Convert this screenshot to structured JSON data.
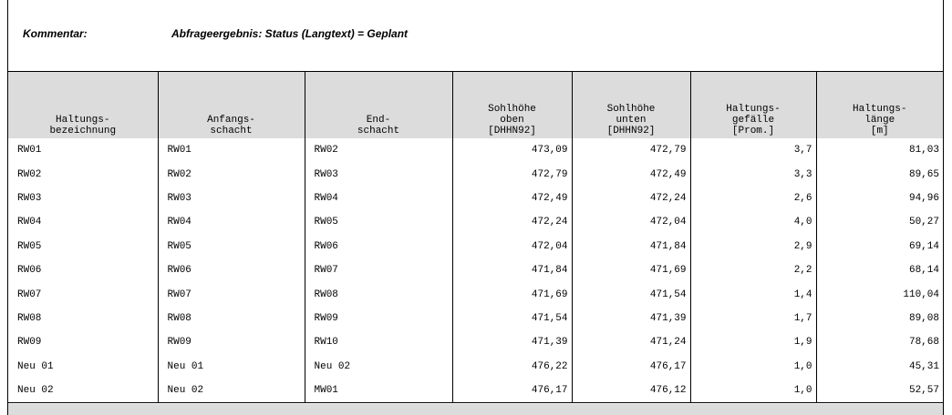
{
  "comment": {
    "label": "Kommentar:",
    "value": "Abfrageergebnis: Status (Langtext) = Geplant"
  },
  "table": {
    "headers": [
      "Haltungs-\nbezeichnung",
      "Anfangs-\nschacht",
      "End-\nschacht",
      "Sohlhöhe\noben\n[DHHN92]",
      "Sohlhöhe\nunten\n[DHHN92]",
      "Haltungs-\ngefälle\n[Prom.]",
      "Haltungs-\nlänge\n[m]"
    ],
    "rows": [
      [
        "RW01",
        "RW01",
        "RW02",
        "473,09",
        "472,79",
        "3,7",
        "81,03"
      ],
      [
        "RW02",
        "RW02",
        "RW03",
        "472,79",
        "472,49",
        "3,3",
        "89,65"
      ],
      [
        "RW03",
        "RW03",
        "RW04",
        "472,49",
        "472,24",
        "2,6",
        "94,96"
      ],
      [
        "RW04",
        "RW04",
        "RW05",
        "472,24",
        "472,04",
        "4,0",
        "50,27"
      ],
      [
        "RW05",
        "RW05",
        "RW06",
        "472,04",
        "471,84",
        "2,9",
        "69,14"
      ],
      [
        "RW06",
        "RW06",
        "RW07",
        "471,84",
        "471,69",
        "2,2",
        "68,14"
      ],
      [
        "RW07",
        "RW07",
        "RW08",
        "471,69",
        "471,54",
        "1,4",
        "110,04"
      ],
      [
        "RW08",
        "RW08",
        "RW09",
        "471,54",
        "471,39",
        "1,7",
        "89,08"
      ],
      [
        "RW09",
        "RW09",
        "RW10",
        "471,39",
        "471,24",
        "1,9",
        "78,68"
      ],
      [
        "Neu 01",
        "Neu 01",
        "Neu 02",
        "476,22",
        "476,17",
        "1,0",
        "45,31"
      ],
      [
        "Neu 02",
        "Neu 02",
        "MW01",
        "476,17",
        "476,12",
        "1,0",
        "52,57"
      ]
    ]
  },
  "colors": {
    "header_bg": "#dcdcdc",
    "border": "#000000"
  }
}
